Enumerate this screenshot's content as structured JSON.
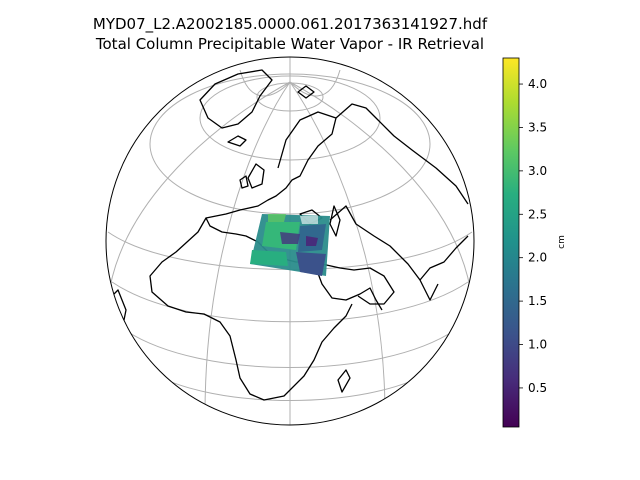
{
  "title": {
    "line1": "MYD07_L2.A2002185.0000.061.2017363141927.hdf",
    "line2": "Total Column Precipitable Water Vapor - IR Retrieval"
  },
  "map": {
    "projection": "orthographic",
    "graticule": true,
    "coastlines": true
  },
  "colorbar": {
    "colormap": "viridis",
    "unit": "cm",
    "min": 0.05,
    "max": 4.3,
    "ticks": [
      "0.5",
      "1.0",
      "1.5",
      "2.0",
      "2.5",
      "3.0",
      "3.5",
      "4.0"
    ],
    "tick_values": [
      0.5,
      1.0,
      1.5,
      2.0,
      2.5,
      3.0,
      3.5,
      4.0
    ]
  }
}
